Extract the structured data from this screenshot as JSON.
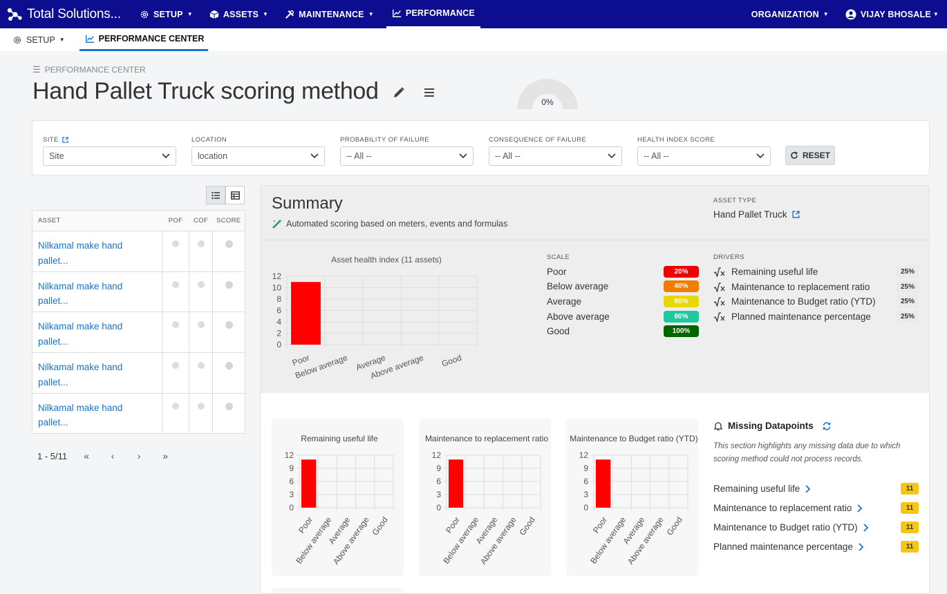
{
  "topnav": {
    "brand": "Total Solutions...",
    "items": [
      {
        "label": "SETUP",
        "icon": "gear-icon"
      },
      {
        "label": "ASSETS",
        "icon": "cube-icon"
      },
      {
        "label": "MAINTENANCE",
        "icon": "tools-icon"
      },
      {
        "label": "PERFORMANCE",
        "icon": "chart-line-icon"
      }
    ],
    "organization": "ORGANIZATION",
    "user": "VIJAY BHOSALE"
  },
  "subnav": {
    "setup": "SETUP",
    "performance_center": "PERFORMANCE CENTER"
  },
  "breadcrumb": "PERFORMANCE CENTER",
  "page_title": "Hand Pallet Truck scoring method",
  "gauge": {
    "value": "0%",
    "fraction": 0
  },
  "filters": {
    "site": {
      "label": "SITE",
      "value": "Site"
    },
    "location": {
      "label": "LOCATION",
      "value": "location"
    },
    "pof": {
      "label": "PROBABILITY OF FAILURE",
      "value": "-- All --"
    },
    "cof": {
      "label": "CONSEQUENCE OF FAILURE",
      "value": "-- All --"
    },
    "health": {
      "label": "HEALTH INDEX SCORE",
      "value": "-- All --"
    },
    "reset": "RESET"
  },
  "asset_table": {
    "headers": [
      "ASSET",
      "POF",
      "COF",
      "SCORE"
    ],
    "rows": [
      {
        "asset_line1": "Nilkamal make hand",
        "asset_line2": "pallet..."
      },
      {
        "asset_line1": "Nilkamal make hand",
        "asset_line2": "pallet..."
      },
      {
        "asset_line1": "Nilkamal make hand",
        "asset_line2": "pallet..."
      },
      {
        "asset_line1": "Nilkamal make hand",
        "asset_line2": "pallet..."
      },
      {
        "asset_line1": "Nilkamal make hand",
        "asset_line2": "pallet..."
      }
    ],
    "pagination": "1 - 5/11",
    "pager_buttons": [
      "«",
      "‹",
      "›",
      "»"
    ]
  },
  "summary": {
    "title": "Summary",
    "subtitle": "Automated scoring based on meters, events and formulas",
    "asset_type_label": "ASSET TYPE",
    "asset_type": "Hand Pallet Truck",
    "scale_label": "SCALE",
    "scale": [
      {
        "name": "Poor",
        "pct": "20%",
        "color": "#ee0000"
      },
      {
        "name": "Below average",
        "pct": "40%",
        "color": "#f07d00"
      },
      {
        "name": "Average",
        "pct": "60%",
        "color": "#e8d800"
      },
      {
        "name": "Above average",
        "pct": "80%",
        "color": "#1ec9a0"
      },
      {
        "name": "Good",
        "pct": "100%",
        "color": "#006400"
      }
    ],
    "drivers_label": "DRIVERS",
    "drivers": [
      {
        "name": "Remaining useful life",
        "pct": "25%"
      },
      {
        "name": "Maintenance to replacement ratio",
        "pct": "25%"
      },
      {
        "name": "Maintenance to Budget ratio (YTD)",
        "pct": "25%"
      },
      {
        "name": "Planned maintenance percentage",
        "pct": "25%"
      }
    ]
  },
  "missing": {
    "title": "Missing Datapoints",
    "description": "This section highlights any missing data due to which scoring method could not process records.",
    "items": [
      {
        "name": "Remaining useful life",
        "count": "11"
      },
      {
        "name": "Maintenance to replacement ratio",
        "count": "11"
      },
      {
        "name": "Maintenance to Budget ratio (YTD)",
        "count": "11"
      },
      {
        "name": "Planned maintenance percentage",
        "count": "11"
      }
    ]
  },
  "chart_data": [
    {
      "type": "bar",
      "title": "Asset health index (11 assets)",
      "categories": [
        "Poor",
        "Below average",
        "Average",
        "Above average",
        "Good"
      ],
      "values": [
        11,
        0,
        0,
        0,
        0
      ],
      "ylim": [
        0,
        12
      ],
      "yticks": [
        0,
        2,
        4,
        6,
        8,
        10,
        12
      ],
      "bar_color": "#ff0000",
      "grid": true
    },
    {
      "type": "bar",
      "title": "Remaining useful life",
      "categories": [
        "Poor",
        "Below average",
        "Average",
        "Above average",
        "Good"
      ],
      "values": [
        11,
        0,
        0,
        0,
        0
      ],
      "ylim": [
        0,
        12
      ],
      "yticks": [
        0,
        3,
        6,
        9,
        12
      ],
      "bar_color": "#ff0000",
      "grid": true
    },
    {
      "type": "bar",
      "title": "Maintenance to replacement ratio",
      "categories": [
        "Poor",
        "Below average",
        "Average",
        "Above average",
        "Good"
      ],
      "values": [
        11,
        0,
        0,
        0,
        0
      ],
      "ylim": [
        0,
        12
      ],
      "yticks": [
        0,
        3,
        6,
        9,
        12
      ],
      "bar_color": "#ff0000",
      "grid": true
    },
    {
      "type": "bar",
      "title": "Maintenance to Budget ratio (YTD)",
      "categories": [
        "Poor",
        "Below average",
        "Average",
        "Above average",
        "Good"
      ],
      "values": [
        11,
        0,
        0,
        0,
        0
      ],
      "ylim": [
        0,
        12
      ],
      "yticks": [
        0,
        3,
        6,
        9,
        12
      ],
      "bar_color": "#ff0000",
      "grid": true
    }
  ]
}
